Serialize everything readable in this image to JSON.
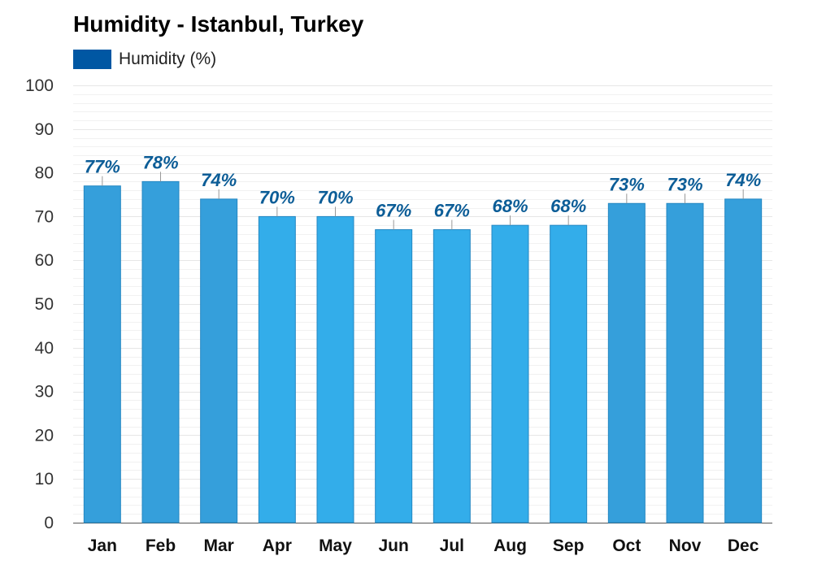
{
  "colors": {
    "bar_dark": "#359FDB",
    "bar_light": "#33ADEA",
    "bar_stroke": "#2487C2",
    "value_label": "#0C5D97",
    "legend_swatch": "#0057A3",
    "grid": "#E6E6E6",
    "axis_text": "#333333"
  },
  "chart_data": {
    "type": "bar",
    "title": "Humidity - Istanbul, Turkey",
    "xlabel": "",
    "ylabel": "",
    "ylim": [
      0,
      100
    ],
    "yticks": [
      0,
      10,
      20,
      30,
      40,
      50,
      60,
      70,
      80,
      90,
      100
    ],
    "grid": true,
    "legend_position": "top-left",
    "categories": [
      "Jan",
      "Feb",
      "Mar",
      "Apr",
      "May",
      "Jun",
      "Jul",
      "Aug",
      "Sep",
      "Oct",
      "Nov",
      "Dec"
    ],
    "series": [
      {
        "name": "Humidity (%)",
        "values": [
          77,
          78,
          74,
          70,
          70,
          67,
          67,
          68,
          68,
          73,
          73,
          74
        ],
        "labels": [
          "77%",
          "78%",
          "74%",
          "70%",
          "70%",
          "67%",
          "67%",
          "68%",
          "68%",
          "73%",
          "73%",
          "74%"
        ]
      }
    ]
  }
}
